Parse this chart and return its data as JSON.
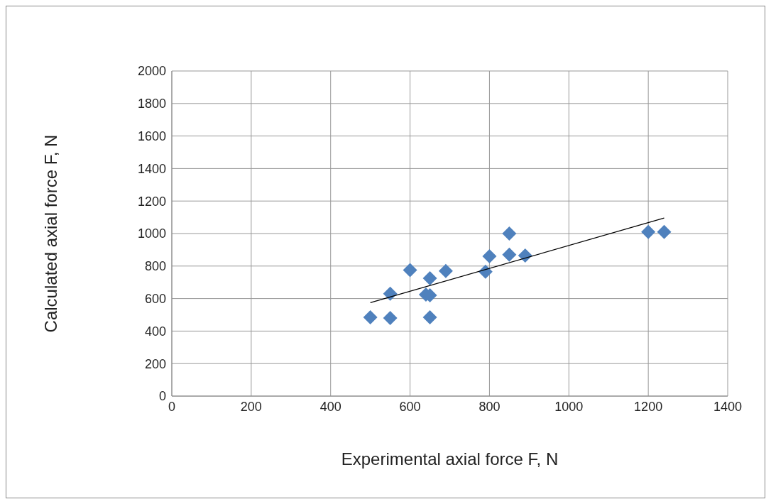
{
  "chart_data": {
    "type": "scatter",
    "xlabel": "Experimental axial force F, N",
    "ylabel": "Calculated axial force F, N",
    "xlim": [
      0,
      1400
    ],
    "xticks": [
      0,
      200,
      400,
      600,
      800,
      1000,
      1200,
      1400
    ],
    "ylim": [
      0,
      2000
    ],
    "yticks": [
      0,
      200,
      400,
      600,
      800,
      1000,
      1200,
      1400,
      1600,
      1800,
      2000
    ],
    "grid": true,
    "legend": false,
    "marker": "diamond",
    "series": [
      {
        "type": "scatter",
        "color": "#4f81bd",
        "x": [
          500,
          550,
          550,
          600,
          650,
          640,
          650,
          650,
          690,
          790,
          800,
          850,
          850,
          890,
          1200,
          1240
        ],
        "values": [
          485,
          480,
          630,
          775,
          485,
          625,
          620,
          725,
          770,
          765,
          860,
          1000,
          870,
          865,
          1010,
          1010
        ]
      },
      {
        "type": "line",
        "color": "#000000",
        "x": [
          500,
          1240
        ],
        "values": [
          575,
          1095
        ],
        "marker": "none",
        "line_style": "solid"
      }
    ]
  }
}
